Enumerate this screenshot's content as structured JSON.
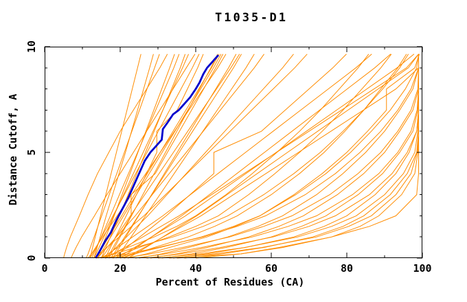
{
  "window": {
    "background": "#ffffff"
  },
  "chart_data": {
    "type": "line",
    "title": "T1035-D1",
    "xlabel": "Percent of Residues (CA)",
    "ylabel": "Distance Cutoff, A",
    "xlim": [
      0,
      100
    ],
    "ylim": [
      0,
      10
    ],
    "x_major_ticks": [
      0,
      20,
      40,
      60,
      80,
      100
    ],
    "x_minor_ticks": [
      10,
      30,
      50,
      70,
      90
    ],
    "y_major_ticks": [
      0,
      5,
      10
    ],
    "y_minor_ticks": [
      1,
      2,
      3,
      4,
      6,
      7,
      8,
      9
    ],
    "grid": false,
    "legend": null,
    "colors": {
      "model_curves": "#ff8c00",
      "highlighted_curve": "#0000cd",
      "axes": "#000000",
      "text": "#000000",
      "background": "#ffffff"
    },
    "series_y_grid": [
      0,
      0.2,
      0.5,
      1,
      1.5,
      2,
      3,
      4,
      5,
      6,
      7,
      8,
      9,
      9.65
    ],
    "model_curves_percent_at_cutoff": [
      [
        12,
        12.3,
        12.7,
        13.4,
        14.1,
        14.8,
        16.2,
        17.6,
        19,
        20.4,
        21.8,
        23.2,
        24.6,
        25.5
      ],
      [
        13,
        13.4,
        13.9,
        14.7,
        15.5,
        16.3,
        18,
        19.7,
        21.4,
        23,
        24.6,
        26.2,
        27.8,
        28.8
      ],
      [
        11,
        11.5,
        12.1,
        13.1,
        14.1,
        15.1,
        17.1,
        19.1,
        21.1,
        23.1,
        25.1,
        27.1,
        29.1,
        30.4
      ],
      [
        14,
        14.5,
        15.1,
        16.2,
        17.3,
        18.4,
        20.5,
        22.6,
        24.7,
        26.8,
        28.9,
        31,
        33.1,
        34.4
      ],
      [
        15,
        15.5,
        16.2,
        17.4,
        18.6,
        19.8,
        22.1,
        24.4,
        26.7,
        29,
        31.3,
        33.6,
        35.9,
        37.2
      ],
      [
        13,
        13.6,
        14.4,
        15.7,
        17,
        18.3,
        20.9,
        23.5,
        26.1,
        28.7,
        31.3,
        33.9,
        36.5,
        38.1
      ],
      [
        16,
        16.6,
        17.4,
        18.8,
        20.2,
        21.6,
        24.3,
        27,
        29.7,
        29.7,
        35.1,
        37.8,
        40.5,
        42
      ],
      [
        12,
        12.7,
        13.6,
        15.1,
        16.6,
        18.1,
        21.1,
        24.1,
        27.1,
        30.1,
        33.1,
        36.1,
        39.1,
        40.9
      ],
      [
        17,
        17.6,
        18.5,
        20,
        21.5,
        23,
        26,
        29,
        32,
        35,
        38,
        41,
        44,
        45.8
      ],
      [
        14,
        14.8,
        15.8,
        17.5,
        19.2,
        20.9,
        24.3,
        27.7,
        31.1,
        34.5,
        37.9,
        41.3,
        44.7,
        46.7
      ],
      [
        18,
        18.8,
        19.8,
        21.5,
        23.2,
        24.9,
        28.3,
        31.7,
        35.1,
        38.5,
        41.9,
        45.3,
        48.7,
        50.7
      ],
      [
        15,
        15.9,
        17,
        18.9,
        20.8,
        22.7,
        26.5,
        30.3,
        34.1,
        37.9,
        41.7,
        45.5,
        49.3,
        51.6
      ],
      [
        19,
        19.9,
        21,
        22.9,
        24.8,
        26.7,
        30.5,
        34.3,
        38.1,
        41.9,
        45.7,
        49.5,
        53.3,
        55.5
      ],
      [
        12.5,
        13,
        13.8,
        15,
        16.2,
        17.4,
        19.8,
        22.2,
        24.6,
        27,
        29.4,
        31.8,
        34.2,
        35.6
      ],
      [
        16.5,
        17.2,
        18.1,
        19.7,
        21.3,
        22.9,
        22.9,
        29.3,
        32.5,
        35.7,
        38.9,
        42.1,
        45.3,
        47.2
      ],
      [
        13.5,
        14.3,
        15.3,
        17,
        18.7,
        20.4,
        23.8,
        27.2,
        30.6,
        34,
        37.4,
        40.8,
        44.2,
        46.2
      ],
      [
        17.5,
        18.3,
        19.4,
        21.2,
        23,
        24.8,
        28.4,
        32,
        35.6,
        39.2,
        42.8,
        46.4,
        50,
        52.1
      ],
      [
        11.5,
        12.4,
        13.5,
        15.4,
        17.3,
        19.2,
        23,
        26.8,
        30.6,
        34.4,
        38.2,
        42,
        45.8,
        48
      ],
      [
        14,
        15,
        16.5,
        19,
        21.5,
        24,
        28.5,
        33,
        37.5,
        42,
        46.5,
        51,
        55.5,
        58.1
      ],
      [
        16,
        17.2,
        18.9,
        21.7,
        24.5,
        27.3,
        32.4,
        37.5,
        42.6,
        47.7,
        52.8,
        57.9,
        63,
        65.9
      ],
      [
        13,
        14.4,
        16.4,
        19.7,
        23,
        26.3,
        32,
        37.7,
        43.4,
        49.1,
        54.8,
        60.5,
        66.2,
        69.5
      ],
      [
        18,
        19.5,
        21.7,
        25.2,
        28.7,
        32.2,
        38.5,
        44.8,
        44.8,
        57.4,
        63.7,
        70,
        76.3,
        79.9
      ],
      [
        15,
        16.8,
        19.3,
        23.3,
        27.3,
        31.3,
        38.6,
        45.9,
        53.2,
        60.5,
        67.8,
        75.1,
        82.4,
        86.6
      ],
      [
        20,
        21.8,
        24.3,
        28.3,
        32.3,
        36.3,
        43.6,
        50.9,
        58.2,
        65.5,
        72.8,
        80.1,
        87.4,
        91.6
      ],
      [
        16,
        18.2,
        21.2,
        26,
        30.8,
        35.6,
        44.2,
        52.8,
        61.4,
        70,
        78.6,
        87.2,
        95.8,
        99
      ],
      [
        22,
        24,
        26.8,
        31.3,
        35.8,
        40.3,
        48.3,
        56.3,
        64.3,
        72.3,
        80.3,
        88.3,
        96.3,
        99
      ],
      [
        19,
        21,
        23.8,
        28.3,
        32.8,
        37.3,
        45.3,
        53.3,
        61.3,
        69.3,
        77.3,
        85.3,
        93.3,
        97.8
      ],
      [
        21,
        23.3,
        26.4,
        31.4,
        36.4,
        41.4,
        50,
        58.6,
        67.2,
        75.8,
        84.4,
        93,
        99,
        99
      ],
      [
        15,
        18,
        22,
        29,
        35,
        40,
        48,
        55,
        61.5,
        67.5,
        73,
        78,
        83,
        85.8
      ],
      [
        17,
        20.5,
        25,
        33,
        40,
        46,
        54,
        61,
        67.5,
        73.5,
        79,
        84,
        89,
        91.8
      ],
      [
        20,
        24,
        29,
        38,
        45,
        51,
        60,
        67.5,
        74,
        79.5,
        84.5,
        89,
        93.5,
        95.8
      ],
      [
        14,
        18.5,
        24,
        34,
        42,
        48.5,
        58,
        66,
        73,
        79,
        84.5,
        89.5,
        94,
        96.3
      ],
      [
        22,
        27,
        33,
        43,
        50.5,
        57,
        66,
        73.5,
        80,
        85.5,
        90.5,
        90.5,
        98,
        99.2
      ],
      [
        18,
        23.5,
        30.5,
        41.5,
        50,
        57,
        66.5,
        74.5,
        81,
        86.5,
        91.5,
        95.5,
        98.5,
        99
      ],
      [
        25,
        31,
        38,
        48.5,
        56.5,
        63,
        72,
        79,
        85,
        90,
        94,
        97.5,
        99,
        99
      ],
      [
        16,
        22,
        30,
        42,
        51,
        58.5,
        69,
        77,
        83.5,
        89,
        93.5,
        97,
        99,
        99
      ],
      [
        28,
        35,
        43,
        54,
        62,
        68.5,
        77.5,
        84.5,
        90,
        94,
        97.5,
        99,
        99,
        99
      ],
      [
        21,
        28,
        36.5,
        49,
        58,
        65.5,
        75.5,
        83,
        89,
        93.5,
        97,
        98.8,
        99,
        99
      ],
      [
        31,
        39,
        48,
        60,
        68,
        74.5,
        83,
        89.5,
        94,
        97.5,
        98.8,
        99,
        99,
        99
      ],
      [
        24,
        32,
        41.5,
        55,
        64.5,
        72,
        81.5,
        88.5,
        93.5,
        97,
        98.6,
        99,
        99,
        99
      ],
      [
        34,
        43,
        53,
        66,
        74,
        80,
        87.5,
        93,
        96.5,
        98.5,
        99,
        99,
        99,
        99
      ],
      [
        27,
        36,
        46.5,
        60.5,
        70,
        77,
        86,
        92,
        96,
        98.5,
        99,
        99,
        99,
        99
      ],
      [
        37,
        47,
        58,
        71,
        79,
        84.5,
        91.5,
        96,
        98.5,
        99,
        99,
        99,
        99,
        99
      ],
      [
        30,
        41,
        53,
        67,
        76,
        82.5,
        90,
        95,
        98,
        98.8,
        99,
        99,
        99,
        99
      ],
      [
        40,
        52,
        63,
        76,
        83.5,
        88.5,
        94.5,
        98,
        98.8,
        99,
        99,
        99,
        99,
        99
      ],
      [
        33,
        45,
        57.5,
        72,
        80.5,
        86.5,
        93,
        97,
        98.6,
        99,
        99,
        99,
        99,
        99
      ],
      [
        5,
        5.3,
        5.8,
        6.8,
        8,
        9.2,
        11.5,
        14,
        17,
        20,
        23.5,
        27,
        30.5,
        32.5
      ],
      [
        35,
        52,
        62,
        76,
        86,
        93,
        98.5,
        99,
        99,
        99,
        99,
        99,
        99,
        99
      ],
      [
        7,
        7.5,
        8.3,
        9.8,
        11.5,
        13.2,
        16.5,
        20,
        23.5,
        27,
        30.5,
        34,
        37.5,
        39.8
      ]
    ],
    "highlighted_curve_points": [
      [
        13.5,
        0
      ],
      [
        14.5,
        0.3
      ],
      [
        16,
        0.8
      ],
      [
        17.5,
        1.2
      ],
      [
        19,
        1.8
      ],
      [
        20.5,
        2.3
      ],
      [
        22,
        2.8
      ],
      [
        23.5,
        3.4
      ],
      [
        25,
        4.0
      ],
      [
        26.5,
        4.6
      ],
      [
        28,
        5.0
      ],
      [
        29.5,
        5.3
      ],
      [
        31,
        5.6
      ],
      [
        31.3,
        6.1
      ],
      [
        32.5,
        6.4
      ],
      [
        34,
        6.8
      ],
      [
        35.5,
        7.0
      ],
      [
        37,
        7.3
      ],
      [
        38.5,
        7.6
      ],
      [
        40,
        8.0
      ],
      [
        41,
        8.3
      ],
      [
        42,
        8.7
      ],
      [
        43,
        9.0
      ],
      [
        44,
        9.2
      ],
      [
        45,
        9.4
      ],
      [
        46,
        9.6
      ]
    ]
  }
}
